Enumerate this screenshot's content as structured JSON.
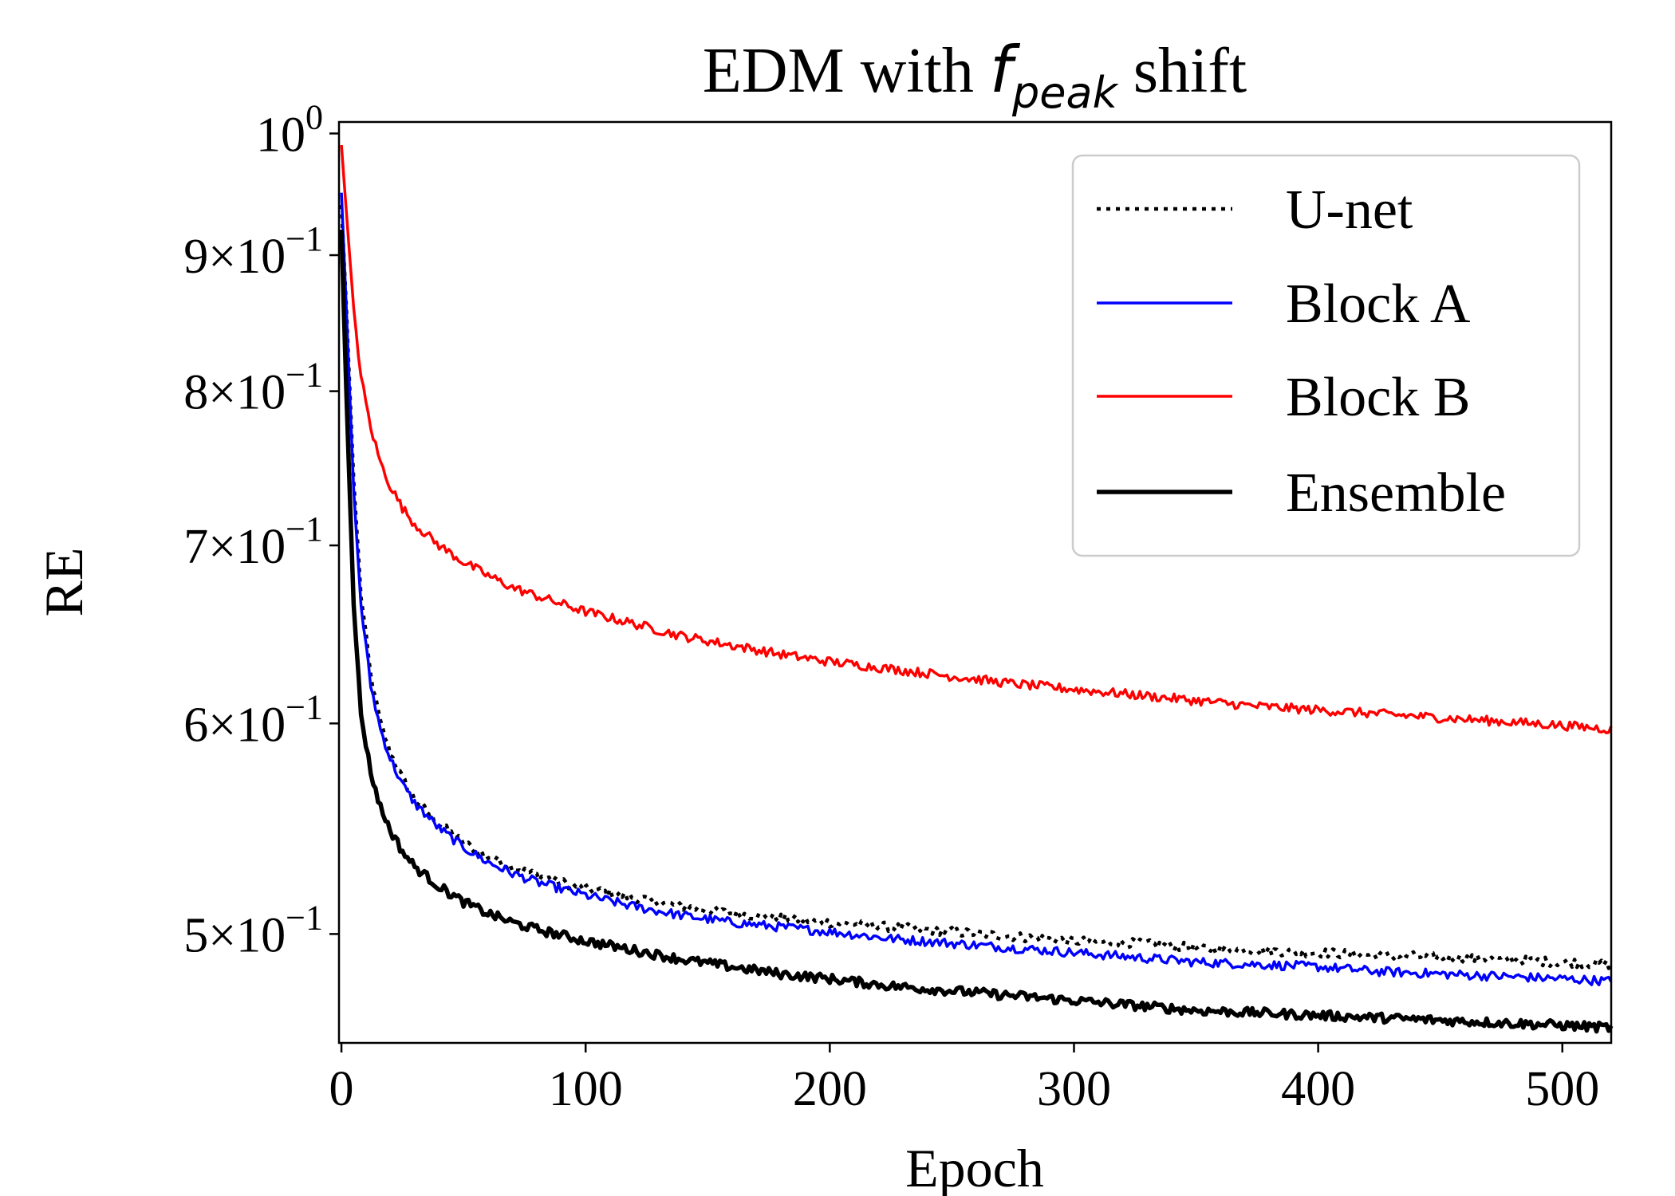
{
  "chart_data": {
    "type": "line",
    "title": "EDM with f_peak shift",
    "title_parts": {
      "prefix": "EDM with ",
      "symbol": "f",
      "subscript": "peak",
      "suffix": " shift"
    },
    "xlabel": "Epoch",
    "ylabel": "RE",
    "xlim": [
      -1,
      520
    ],
    "ylim": [
      0.455,
      1.01
    ],
    "yscale": "log",
    "grid": false,
    "legend_position": "top-right",
    "x_ticks": [
      {
        "value": 0,
        "label": "0"
      },
      {
        "value": 100,
        "label": "100"
      },
      {
        "value": 200,
        "label": "200"
      },
      {
        "value": 300,
        "label": "300"
      },
      {
        "value": 400,
        "label": "400"
      },
      {
        "value": 500,
        "label": "500"
      }
    ],
    "y_ticks": [
      {
        "value": 1.0,
        "mant": "10",
        "exp": "0"
      },
      {
        "value": 0.9,
        "mant": "9×10",
        "exp": "−1"
      },
      {
        "value": 0.8,
        "mant": "8×10",
        "exp": "−1"
      },
      {
        "value": 0.7,
        "mant": "7×10",
        "exp": "−1"
      },
      {
        "value": 0.6,
        "mant": "6×10",
        "exp": "−1"
      },
      {
        "value": 0.5,
        "mant": "5×10",
        "exp": "−1"
      }
    ],
    "x": [
      0,
      2,
      5,
      8,
      12,
      16,
      20,
      25,
      30,
      40,
      50,
      60,
      70,
      80,
      100,
      120,
      140,
      160,
      180,
      200,
      225,
      250,
      275,
      300,
      325,
      350,
      375,
      400,
      425,
      450,
      475,
      500,
      520
    ],
    "series": [
      {
        "name": "U-net",
        "color": "#000000",
        "style": "dotted",
        "values": [
          0.94,
          0.86,
          0.74,
          0.67,
          0.625,
          0.6,
          0.585,
          0.572,
          0.562,
          0.55,
          0.541,
          0.535,
          0.53,
          0.526,
          0.52,
          0.516,
          0.512,
          0.509,
          0.507,
          0.505,
          0.503,
          0.501,
          0.499,
          0.497,
          0.496,
          0.494,
          0.493,
          0.492,
          0.491,
          0.49,
          0.489,
          0.488,
          0.487
        ]
      },
      {
        "name": "Block A",
        "color": "#0000ff",
        "style": "solid",
        "values": [
          0.95,
          0.86,
          0.735,
          0.665,
          0.62,
          0.597,
          0.582,
          0.569,
          0.56,
          0.548,
          0.539,
          0.532,
          0.527,
          0.523,
          0.517,
          0.512,
          0.508,
          0.505,
          0.503,
          0.501,
          0.498,
          0.496,
          0.494,
          0.492,
          0.49,
          0.488,
          0.487,
          0.486,
          0.484,
          0.483,
          0.482,
          0.481,
          0.48
        ]
      },
      {
        "name": "Block B",
        "color": "#ff0000",
        "style": "solid",
        "values": [
          0.99,
          0.935,
          0.86,
          0.81,
          0.775,
          0.752,
          0.737,
          0.723,
          0.713,
          0.7,
          0.69,
          0.682,
          0.675,
          0.67,
          0.661,
          0.654,
          0.647,
          0.642,
          0.637,
          0.633,
          0.629,
          0.625,
          0.621,
          0.618,
          0.615,
          0.612,
          0.609,
          0.607,
          0.605,
          0.603,
          0.601,
          0.599,
          0.597
        ]
      },
      {
        "name": "Ensemble",
        "color": "#000000",
        "style": "solid-thick",
        "values": [
          0.92,
          0.8,
          0.665,
          0.605,
          0.575,
          0.558,
          0.547,
          0.537,
          0.53,
          0.521,
          0.514,
          0.509,
          0.505,
          0.502,
          0.497,
          0.493,
          0.489,
          0.486,
          0.483,
          0.481,
          0.478,
          0.476,
          0.474,
          0.472,
          0.47,
          0.468,
          0.467,
          0.466,
          0.465,
          0.464,
          0.463,
          0.462,
          0.461
        ]
      }
    ]
  }
}
